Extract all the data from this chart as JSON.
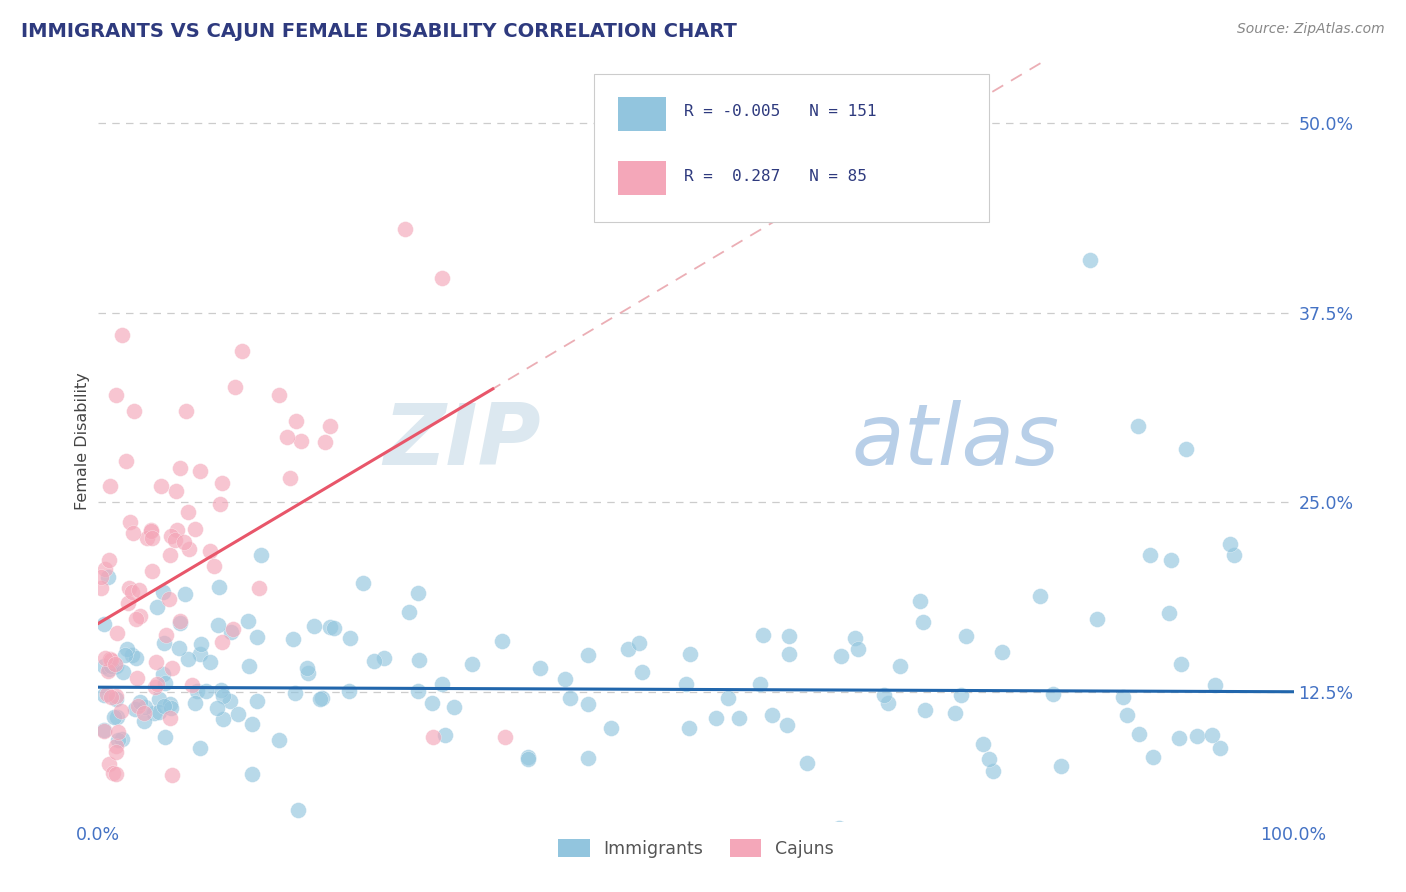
{
  "title": "IMMIGRANTS VS CAJUN FEMALE DISABILITY CORRELATION CHART",
  "source": "Source: ZipAtlas.com",
  "ylabel": "Female Disability",
  "xlim": [
    0.0,
    1.0
  ],
  "ylim": [
    0.04,
    0.54
  ],
  "yticks": [
    0.125,
    0.25,
    0.375,
    0.5
  ],
  "ytick_labels": [
    "12.5%",
    "25.0%",
    "37.5%",
    "50.0%"
  ],
  "legend_blue_r": "-0.005",
  "legend_blue_n": "151",
  "legend_pink_r": "0.287",
  "legend_pink_n": "85",
  "blue_color": "#92c5de",
  "pink_color": "#f4a7b9",
  "blue_line_color": "#2166ac",
  "pink_line_color": "#e8566a",
  "pink_dash_color": "#e8a0a8",
  "grid_color": "#c0c0c0",
  "background_color": "#ffffff",
  "title_color": "#2e3a7e",
  "axis_color": "#4472c4",
  "source_color": "#888888",
  "ylabel_color": "#444444",
  "seed": 12345
}
